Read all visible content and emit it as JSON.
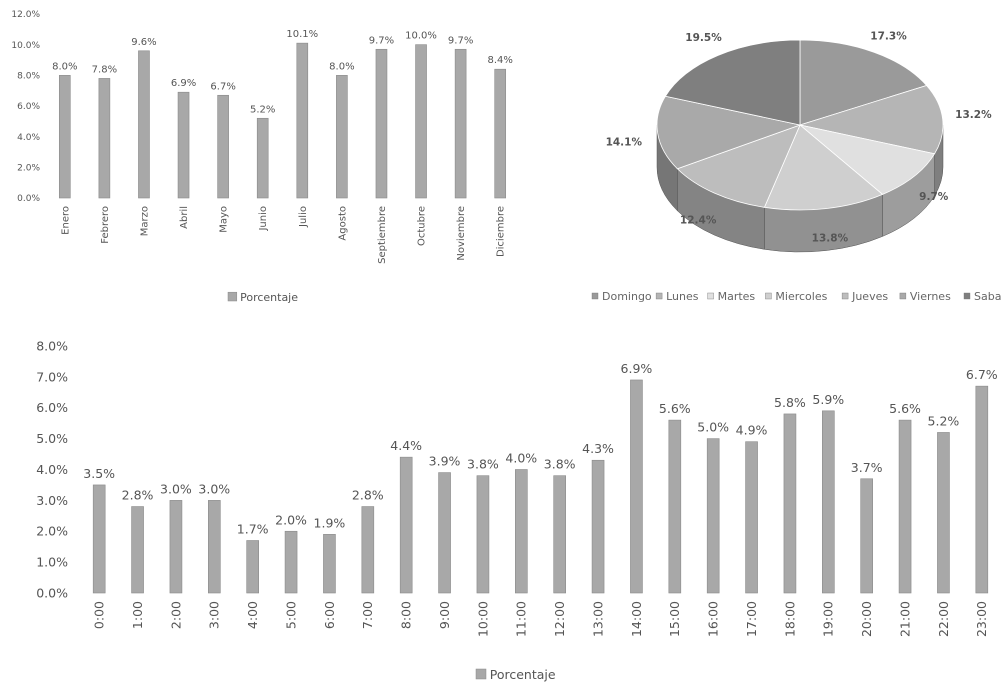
{
  "chart_data": [
    {
      "type": "bar",
      "categories": [
        "Enero",
        "Febrero",
        "Marzo",
        "Abril",
        "Mayo",
        "Junio",
        "Julio",
        "Agosto",
        "Septiembre",
        "Octubre",
        "Noviembre",
        "Diciembre"
      ],
      "series": [
        {
          "name": "Porcentaje",
          "values": [
            8.0,
            7.8,
            9.6,
            6.9,
            6.7,
            5.2,
            10.1,
            8.0,
            9.7,
            10.0,
            9.7,
            8.4
          ]
        }
      ],
      "data_labels": [
        "8.0%",
        "7.8%",
        "9.6%",
        "6.9%",
        "6.7%",
        "5.2%",
        "10.1%",
        "8.0%",
        "9.7%",
        "10.0%",
        "9.7%",
        "8.4%"
      ],
      "ylim": [
        0,
        12
      ],
      "ytick_labels": [
        "0.0%",
        "2.0%",
        "4.0%",
        "6.0%",
        "8.0%",
        "10.0%",
        "12.0%"
      ],
      "legend": "bottom",
      "legend_label": "Porcentaje",
      "grid": false
    },
    {
      "type": "pie",
      "categories": [
        "Domingo",
        "Lunes",
        "Martes",
        "Miercoles",
        "Jueves",
        "Viernes",
        "Sabado"
      ],
      "values": [
        17.3,
        13.2,
        9.7,
        13.8,
        12.4,
        14.1,
        19.5
      ],
      "data_labels": [
        "17.3%",
        "13.2%",
        "9.7%",
        "13.8%",
        "12.4%",
        "14.1%",
        "19.5%"
      ],
      "legend": "bottom",
      "style": "3d"
    },
    {
      "type": "bar",
      "categories": [
        "0:00",
        "1:00",
        "2:00",
        "3:00",
        "4:00",
        "5:00",
        "6:00",
        "7:00",
        "8:00",
        "9:00",
        "10:00",
        "11:00",
        "12:00",
        "13:00",
        "14:00",
        "15:00",
        "16:00",
        "17:00",
        "18:00",
        "19:00",
        "20:00",
        "21:00",
        "22:00",
        "23:00"
      ],
      "series": [
        {
          "name": "Porcentaje",
          "values": [
            3.5,
            2.8,
            3.0,
            3.0,
            1.7,
            2.0,
            1.9,
            2.8,
            4.4,
            3.9,
            3.8,
            4.0,
            3.8,
            4.3,
            6.9,
            5.6,
            5.0,
            4.9,
            5.8,
            5.9,
            3.7,
            5.6,
            5.2,
            6.7
          ]
        }
      ],
      "data_labels": [
        "3.5%",
        "2.8%",
        "3.0%",
        "3.0%",
        "1.7%",
        "2.0%",
        "1.9%",
        "2.8%",
        "4.4%",
        "3.9%",
        "3.8%",
        "4.0%",
        "3.8%",
        "4.3%",
        "6.9%",
        "5.6%",
        "5.0%",
        "4.9%",
        "5.8%",
        "5.9%",
        "3.7%",
        "5.6%",
        "5.2%",
        "6.7%"
      ],
      "ylim": [
        0,
        8
      ],
      "ytick_labels": [
        "0.0%",
        "1.0%",
        "2.0%",
        "3.0%",
        "4.0%",
        "5.0%",
        "6.0%",
        "7.0%",
        "8.0%"
      ],
      "legend": "bottom",
      "legend_label": "Porcentaje",
      "grid": false
    }
  ],
  "colors": {
    "bar_fill": "#a8a8a8",
    "bar_stroke": "#8a8a8a",
    "pie_shades": [
      "#9a9a9a",
      "#b5b5b5",
      "#e0e0e0",
      "#cfcfcf",
      "#bdbdbd",
      "#a9a9a9",
      "#7f7f7f"
    ]
  }
}
